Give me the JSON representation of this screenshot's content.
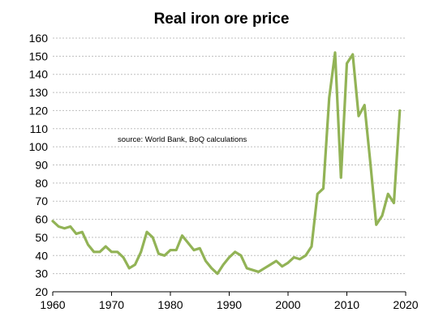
{
  "chart_data": {
    "type": "line",
    "title": "Real iron ore price",
    "annotation": "source:  World Bank, BoQ  calculations",
    "xlabel": "",
    "ylabel": "",
    "xlim": [
      1960,
      2020
    ],
    "ylim": [
      20,
      160
    ],
    "x_ticks": [
      1960,
      1970,
      1980,
      1990,
      2000,
      2010,
      2020
    ],
    "y_ticks": [
      20,
      30,
      40,
      50,
      60,
      70,
      80,
      90,
      100,
      110,
      120,
      130,
      140,
      150,
      160
    ],
    "grid": "horizontal-dashed",
    "legend": "none",
    "color": "#92b356",
    "series": [
      {
        "x": [
          1960,
          1961,
          1962,
          1963,
          1964,
          1965,
          1966,
          1967,
          1968,
          1969,
          1970,
          1971,
          1972,
          1973,
          1974,
          1975,
          1976,
          1977,
          1978,
          1979,
          1980,
          1981,
          1982,
          1983,
          1984,
          1985,
          1986,
          1987,
          1988,
          1989,
          1990,
          1991,
          1992,
          1993,
          1994,
          1995,
          1996,
          1997,
          1998,
          1999,
          2000,
          2001,
          2002,
          2003,
          2004,
          2005,
          2006,
          2007,
          2008,
          2009,
          2010,
          2011,
          2012,
          2013,
          2014,
          2015,
          2016,
          2017,
          2018,
          2019
        ],
        "y": [
          59,
          56,
          55,
          56,
          52,
          53,
          46,
          42,
          42,
          45,
          42,
          42,
          39,
          33,
          35,
          42,
          53,
          50,
          41,
          40,
          43,
          43,
          51,
          47,
          43,
          44,
          37,
          33,
          30,
          35,
          39,
          42,
          40,
          33,
          32,
          31,
          33,
          35,
          37,
          34,
          36,
          39,
          38,
          40,
          45,
          74,
          77,
          127,
          152,
          83,
          146,
          151,
          117,
          123,
          91,
          57,
          62,
          74,
          69,
          120
        ]
      }
    ]
  }
}
